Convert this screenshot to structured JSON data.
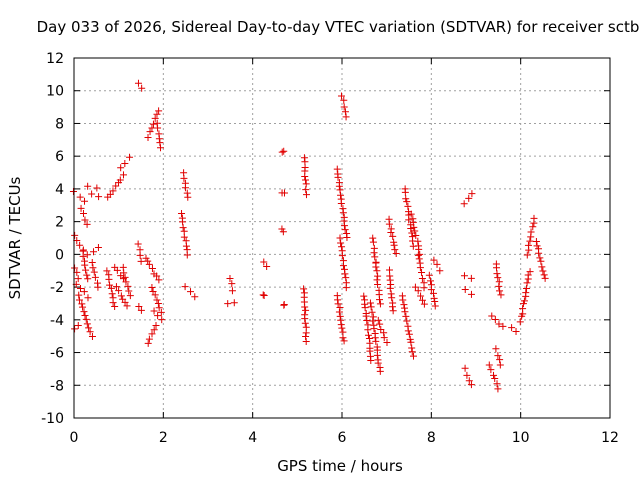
{
  "chart_data": {
    "type": "scatter",
    "title": "Day 033 of 2026, Sidereal Day-to-day VTEC variation (SDTVAR) for receiver sctb",
    "xlabel": "GPS time / hours",
    "ylabel": "SDTVAR / TECUs",
    "xlim": [
      0,
      12
    ],
    "ylim": [
      -10,
      12
    ],
    "xticks": [
      0,
      2,
      4,
      6,
      8,
      10,
      12
    ],
    "yticks": [
      -10,
      -8,
      -6,
      -4,
      -2,
      0,
      2,
      4,
      6,
      8,
      10,
      12
    ],
    "x_tick_labels": [
      "0",
      "2",
      "4",
      "6",
      "8",
      "10",
      "12"
    ],
    "y_tick_labels": [
      "-10",
      "-8",
      "-6",
      "-4",
      "-2",
      "0",
      "2",
      "4",
      "6",
      "8",
      "10",
      "12"
    ],
    "grid": true,
    "marker": "+",
    "color": "#e00000",
    "series": [
      {
        "name": "SDTVAR",
        "segments": [
          [
            0.0,
            0.25,
            3.8,
            3.3
          ],
          [
            0.15,
            0.3,
            2.8,
            1.8
          ],
          [
            0.0,
            0.2,
            1.2,
            0.3
          ],
          [
            0.0,
            0.1,
            -0.8,
            -1.5
          ],
          [
            0.05,
            0.3,
            -1.8,
            -2.6
          ],
          [
            0.0,
            0.1,
            -4.6,
            -4.3
          ],
          [
            0.1,
            0.4,
            -2.5,
            -5.0
          ],
          [
            0.2,
            0.3,
            0.2,
            -1.5
          ],
          [
            0.3,
            0.55,
            0.0,
            0.4
          ],
          [
            0.5,
            0.55,
            4.0,
            3.5
          ],
          [
            0.3,
            0.4,
            4.2,
            3.7
          ],
          [
            0.4,
            0.55,
            -0.5,
            -2.0
          ],
          [
            0.75,
            1.1,
            3.5,
            4.8
          ],
          [
            1.05,
            1.25,
            5.3,
            5.9
          ],
          [
            0.75,
            0.9,
            -1.0,
            -3.2
          ],
          [
            0.9,
            1.1,
            -0.8,
            -1.5
          ],
          [
            0.95,
            1.2,
            -2.0,
            -3.2
          ],
          [
            1.1,
            1.25,
            -0.8,
            -2.5
          ],
          [
            1.45,
            1.5,
            10.5,
            10.1
          ],
          [
            1.45,
            1.5,
            0.6,
            -0.4
          ],
          [
            1.45,
            1.5,
            -3.2,
            -3.4
          ],
          [
            1.65,
            1.9,
            7.2,
            8.8
          ],
          [
            1.85,
            1.95,
            8.0,
            6.5
          ],
          [
            1.6,
            1.9,
            -0.2,
            -1.6
          ],
          [
            1.75,
            1.95,
            -2.0,
            -3.5
          ],
          [
            1.65,
            1.85,
            -5.4,
            -4.4
          ],
          [
            1.8,
            1.95,
            -3.5,
            -4.0
          ],
          [
            2.45,
            2.55,
            5.0,
            3.5
          ],
          [
            2.4,
            2.55,
            2.5,
            0.0
          ],
          [
            2.5,
            2.7,
            -2.0,
            -2.6
          ],
          [
            3.45,
            3.6,
            -3.0,
            -2.9
          ],
          [
            3.5,
            3.55,
            -1.5,
            -2.2
          ],
          [
            4.25,
            4.3,
            -0.5,
            -0.8
          ],
          [
            4.25,
            4.25,
            -2.5,
            -2.5
          ],
          [
            4.65,
            4.7,
            6.3,
            6.3
          ],
          [
            4.65,
            4.7,
            3.8,
            3.8
          ],
          [
            4.65,
            4.7,
            1.5,
            1.4
          ],
          [
            4.7,
            4.7,
            -3.1,
            -3.1
          ],
          [
            5.15,
            5.2,
            5.9,
            3.7
          ],
          [
            5.15,
            5.2,
            -2.1,
            -5.3
          ],
          [
            6.0,
            6.1,
            9.7,
            8.4
          ],
          [
            5.9,
            6.1,
            5.2,
            1.0
          ],
          [
            5.95,
            6.1,
            1.0,
            -2.0
          ],
          [
            5.9,
            6.05,
            -2.5,
            -5.3
          ],
          [
            6.5,
            6.65,
            -2.5,
            -6.5
          ],
          [
            6.65,
            6.85,
            -3.0,
            -7.2
          ],
          [
            6.7,
            6.75,
            1.0,
            -0.5
          ],
          [
            6.75,
            6.85,
            -0.5,
            -3.0
          ],
          [
            6.8,
            7.0,
            -4.0,
            -5.4
          ],
          [
            7.05,
            7.2,
            2.1,
            0.0
          ],
          [
            7.05,
            7.15,
            -1.0,
            -3.5
          ],
          [
            7.4,
            7.6,
            4.0,
            0.5
          ],
          [
            7.35,
            7.6,
            -2.5,
            -6.2
          ],
          [
            7.55,
            7.75,
            2.5,
            0.0
          ],
          [
            7.65,
            7.85,
            -2.0,
            -3.0
          ],
          [
            7.7,
            7.85,
            0.0,
            -2.0
          ],
          [
            7.95,
            8.1,
            -1.3,
            -3.2
          ],
          [
            8.05,
            8.2,
            -0.3,
            -1.0
          ],
          [
            8.75,
            8.9,
            3.1,
            3.7
          ],
          [
            8.75,
            8.9,
            -2.2,
            -2.4
          ],
          [
            8.75,
            8.9,
            -1.3,
            -1.5
          ],
          [
            8.75,
            8.9,
            -7.0,
            -8.0
          ],
          [
            9.3,
            9.5,
            -6.8,
            -8.2
          ],
          [
            9.35,
            9.6,
            -3.8,
            -4.4
          ],
          [
            9.45,
            9.55,
            -0.6,
            -2.5
          ],
          [
            9.45,
            9.55,
            -5.8,
            -6.8
          ],
          [
            9.8,
            9.9,
            -4.5,
            -4.7
          ],
          [
            10.0,
            10.2,
            -4.1,
            -1.0
          ],
          [
            10.15,
            10.3,
            0.0,
            2.2
          ],
          [
            10.35,
            10.55,
            0.8,
            -1.5
          ]
        ]
      }
    ]
  }
}
